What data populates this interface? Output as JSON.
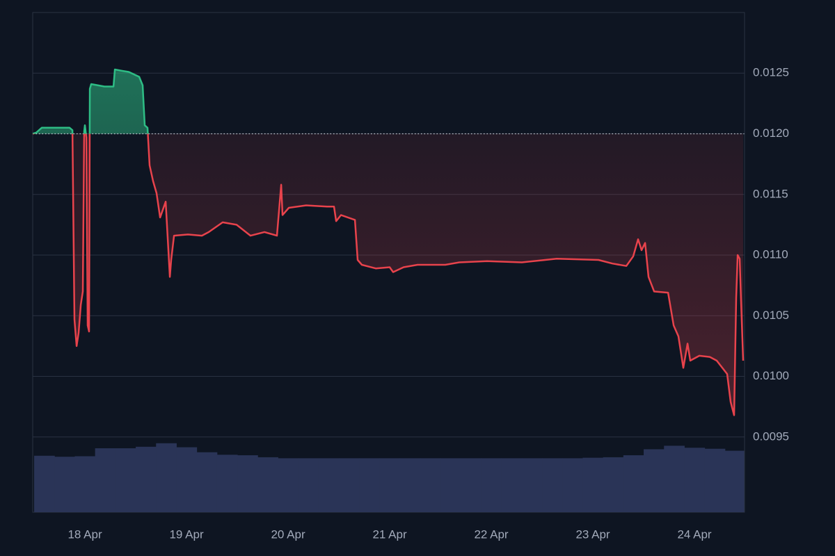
{
  "chart_data": {
    "type": "baseline",
    "x": [
      17.486,
      17.521,
      17.575,
      17.849,
      17.877,
      17.897,
      17.918,
      17.938,
      17.959,
      17.979,
      17.993,
      18.0,
      18.014,
      18.027,
      18.041,
      18.048,
      18.062,
      18.192,
      18.281,
      18.295,
      18.363,
      18.432,
      18.534,
      18.568,
      18.589,
      18.616,
      18.637,
      18.671,
      18.705,
      18.74,
      18.795,
      18.836,
      18.849,
      18.877,
      19.014,
      19.151,
      19.219,
      19.356,
      19.493,
      19.63,
      19.767,
      19.89,
      19.932,
      19.945,
      20.007,
      20.178,
      20.384,
      20.452,
      20.473,
      20.521,
      20.658,
      20.685,
      20.726,
      20.863,
      21.0,
      21.034,
      21.137,
      21.274,
      21.548,
      21.685,
      21.959,
      22.301,
      22.644,
      23.055,
      23.192,
      23.329,
      23.397,
      23.445,
      23.479,
      23.514,
      23.548,
      23.603,
      23.74,
      23.795,
      23.842,
      23.89,
      23.932,
      23.959,
      24.048,
      24.151,
      24.219,
      24.322,
      24.356,
      24.39,
      24.411,
      24.425,
      24.445,
      24.459,
      24.479
    ],
    "values": [
      0.012,
      0.01201,
      0.01205,
      0.01205,
      0.01203,
      0.01047,
      0.01025,
      0.01036,
      0.01059,
      0.0107,
      0.01202,
      0.01207,
      0.01197,
      0.01042,
      0.01037,
      0.01237,
      0.01241,
      0.01239,
      0.01239,
      0.01253,
      0.01252,
      0.01251,
      0.01247,
      0.0124,
      0.01207,
      0.01205,
      0.01174,
      0.01161,
      0.01151,
      0.01131,
      0.01144,
      0.01082,
      0.01096,
      0.01116,
      0.01117,
      0.01116,
      0.01119,
      0.01127,
      0.01125,
      0.01116,
      0.01119,
      0.01116,
      0.01158,
      0.01133,
      0.01139,
      0.01141,
      0.0114,
      0.0114,
      0.01128,
      0.01133,
      0.01129,
      0.01096,
      0.01092,
      0.01089,
      0.0109,
      0.01086,
      0.0109,
      0.01092,
      0.01092,
      0.01094,
      0.01095,
      0.01094,
      0.01097,
      0.01096,
      0.01093,
      0.01091,
      0.01099,
      0.01113,
      0.01104,
      0.0111,
      0.01082,
      0.0107,
      0.01069,
      0.01042,
      0.01033,
      0.01007,
      0.01027,
      0.01013,
      0.01017,
      0.01016,
      0.01013,
      0.01002,
      0.00979,
      0.00968,
      0.01065,
      0.011,
      0.01097,
      0.01062,
      0.01013
    ],
    "baseline": 0.012,
    "colors": {
      "above": "#2ebd85",
      "below": "#e8434c"
    },
    "xlim": [
      17.486,
      24.493
    ],
    "ylim": [
      0.00888,
      0.013
    ],
    "xticks": [
      {
        "value": 18,
        "label": "18 Apr"
      },
      {
        "value": 19,
        "label": "19 Apr"
      },
      {
        "value": 20,
        "label": "20 Apr"
      },
      {
        "value": 21,
        "label": "21 Apr"
      },
      {
        "value": 22,
        "label": "22 Apr"
      },
      {
        "value": 23,
        "label": "23 Apr"
      },
      {
        "value": 24,
        "label": "24 Apr"
      }
    ],
    "yticks": [
      0.0095,
      {
        "value": 0.01,
        "label": "0.0100"
      },
      0.0105,
      {
        "value": 0.011,
        "label": "0.0110"
      },
      0.0115,
      {
        "value": 0.012,
        "label": "0.0120"
      },
      0.0125
    ],
    "grid": true,
    "volume": {
      "bins": [
        17.5,
        17.7,
        17.9,
        18.1,
        18.3,
        18.5,
        18.7,
        18.9,
        19.1,
        19.3,
        19.5,
        19.7,
        19.9,
        20.1,
        20.3,
        20.5,
        20.7,
        20.9,
        21.1,
        21.3,
        21.5,
        21.7,
        21.9,
        22.1,
        22.3,
        22.5,
        22.7,
        22.9,
        23.1,
        23.3,
        23.5,
        23.7,
        23.9,
        24.1,
        24.3,
        24.5
      ],
      "values": [
        11.3,
        11.1,
        11.2,
        12.8,
        12.8,
        13.1,
        13.8,
        13.0,
        12.0,
        11.5,
        11.4,
        11.0,
        10.8,
        10.8,
        10.8,
        10.8,
        10.8,
        10.8,
        10.8,
        10.8,
        10.8,
        10.8,
        10.8,
        10.8,
        10.8,
        10.8,
        10.8,
        10.9,
        11.0,
        11.4,
        12.6,
        13.3,
        12.9,
        12.7,
        12.3
      ],
      "vlim": [
        0,
        100
      ],
      "color": "#2a3457"
    }
  }
}
